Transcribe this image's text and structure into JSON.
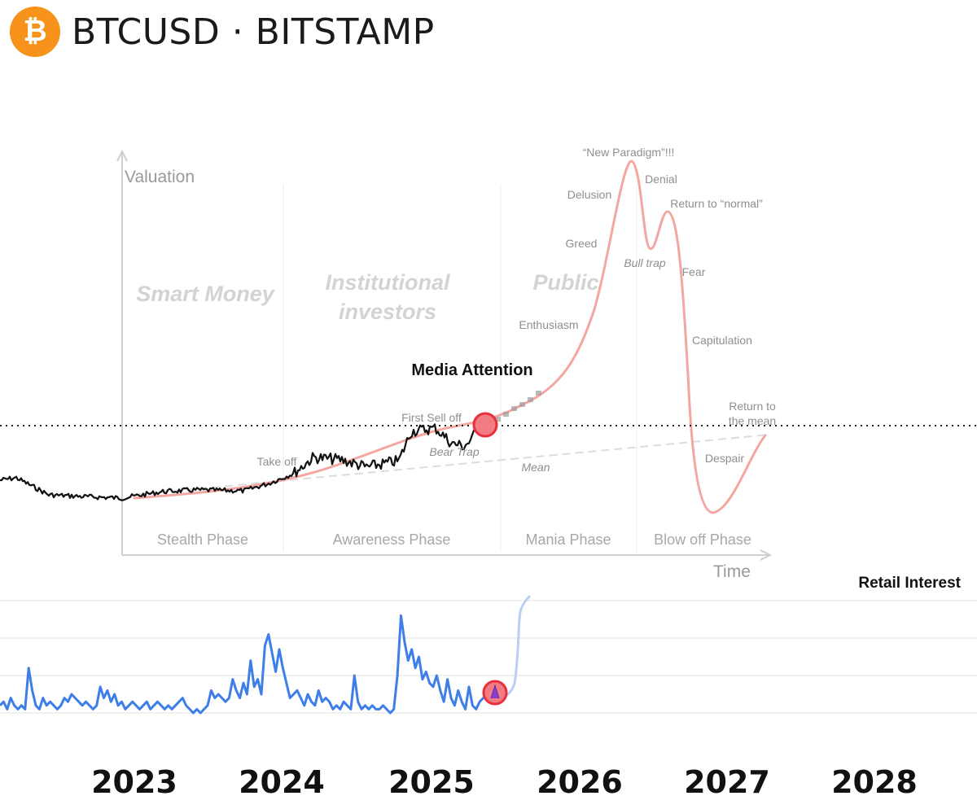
{
  "header": {
    "logo_icon": "bitcoin-icon",
    "logo_glyph": "₿",
    "logo_color": "#F7931A",
    "title": "BTCUSD · BITSTAMP"
  },
  "chart_data": [
    {
      "type": "line",
      "title": "",
      "xlabel": "Time",
      "ylabel": "Valuation",
      "colors": {
        "cycle_curve": "#F4A7A0",
        "price": "#111111",
        "projection": "#999999",
        "marker": "#E8303A"
      },
      "zone_labels": [
        "Smart Money",
        "Institutional investors",
        "Public"
      ],
      "phase_labels": [
        "Stealth Phase",
        "Awareness Phase",
        "Mania Phase",
        "Blow off Phase"
      ],
      "curve_labels": [
        "Take off",
        "First Sell off",
        "Bear Trap",
        "Mean",
        "Enthusiasm",
        "Greed",
        "Delusion",
        "“New Paradigm”!!!",
        "Denial",
        "Bull trap",
        "Return to “normal”",
        "Fear",
        "Capitulation",
        "Return to the mean",
        "Despair"
      ],
      "annotation": "Media Attention"
    },
    {
      "type": "line",
      "title": "Retail Interest",
      "x_ticks": [
        "2023",
        "2024",
        "2025",
        "2026",
        "2027",
        "2028"
      ],
      "series": [
        {
          "color": "#3D7EE8",
          "values": [
            2,
            3,
            1,
            4,
            2,
            1,
            2,
            1,
            12,
            6,
            2,
            1,
            4,
            2,
            3,
            2,
            1,
            2,
            4,
            3,
            5,
            4,
            3,
            2,
            3,
            2,
            1,
            2,
            7,
            4,
            6,
            3,
            5,
            2,
            3,
            1,
            2,
            3,
            2,
            1,
            2,
            3,
            1,
            2,
            3,
            2,
            1,
            2,
            1,
            2,
            3,
            4,
            2,
            1,
            0,
            1,
            0,
            1,
            2,
            6,
            4,
            5,
            4,
            3,
            4,
            9,
            6,
            4,
            8,
            5,
            14,
            7,
            9,
            5,
            18,
            21,
            16,
            11,
            17,
            12,
            8,
            4,
            5,
            6,
            4,
            2,
            5,
            3,
            2,
            6,
            3,
            4,
            3,
            1,
            2,
            1,
            3,
            2,
            1,
            10,
            3,
            1,
            2,
            1,
            2,
            1,
            1,
            2,
            1,
            0,
            1,
            10,
            26,
            19,
            14,
            17,
            12,
            15,
            9,
            11,
            8,
            7,
            10,
            6,
            3,
            9,
            4,
            2,
            6,
            3,
            1,
            7,
            2,
            1,
            3,
            4,
            5
          ]
        }
      ]
    }
  ]
}
